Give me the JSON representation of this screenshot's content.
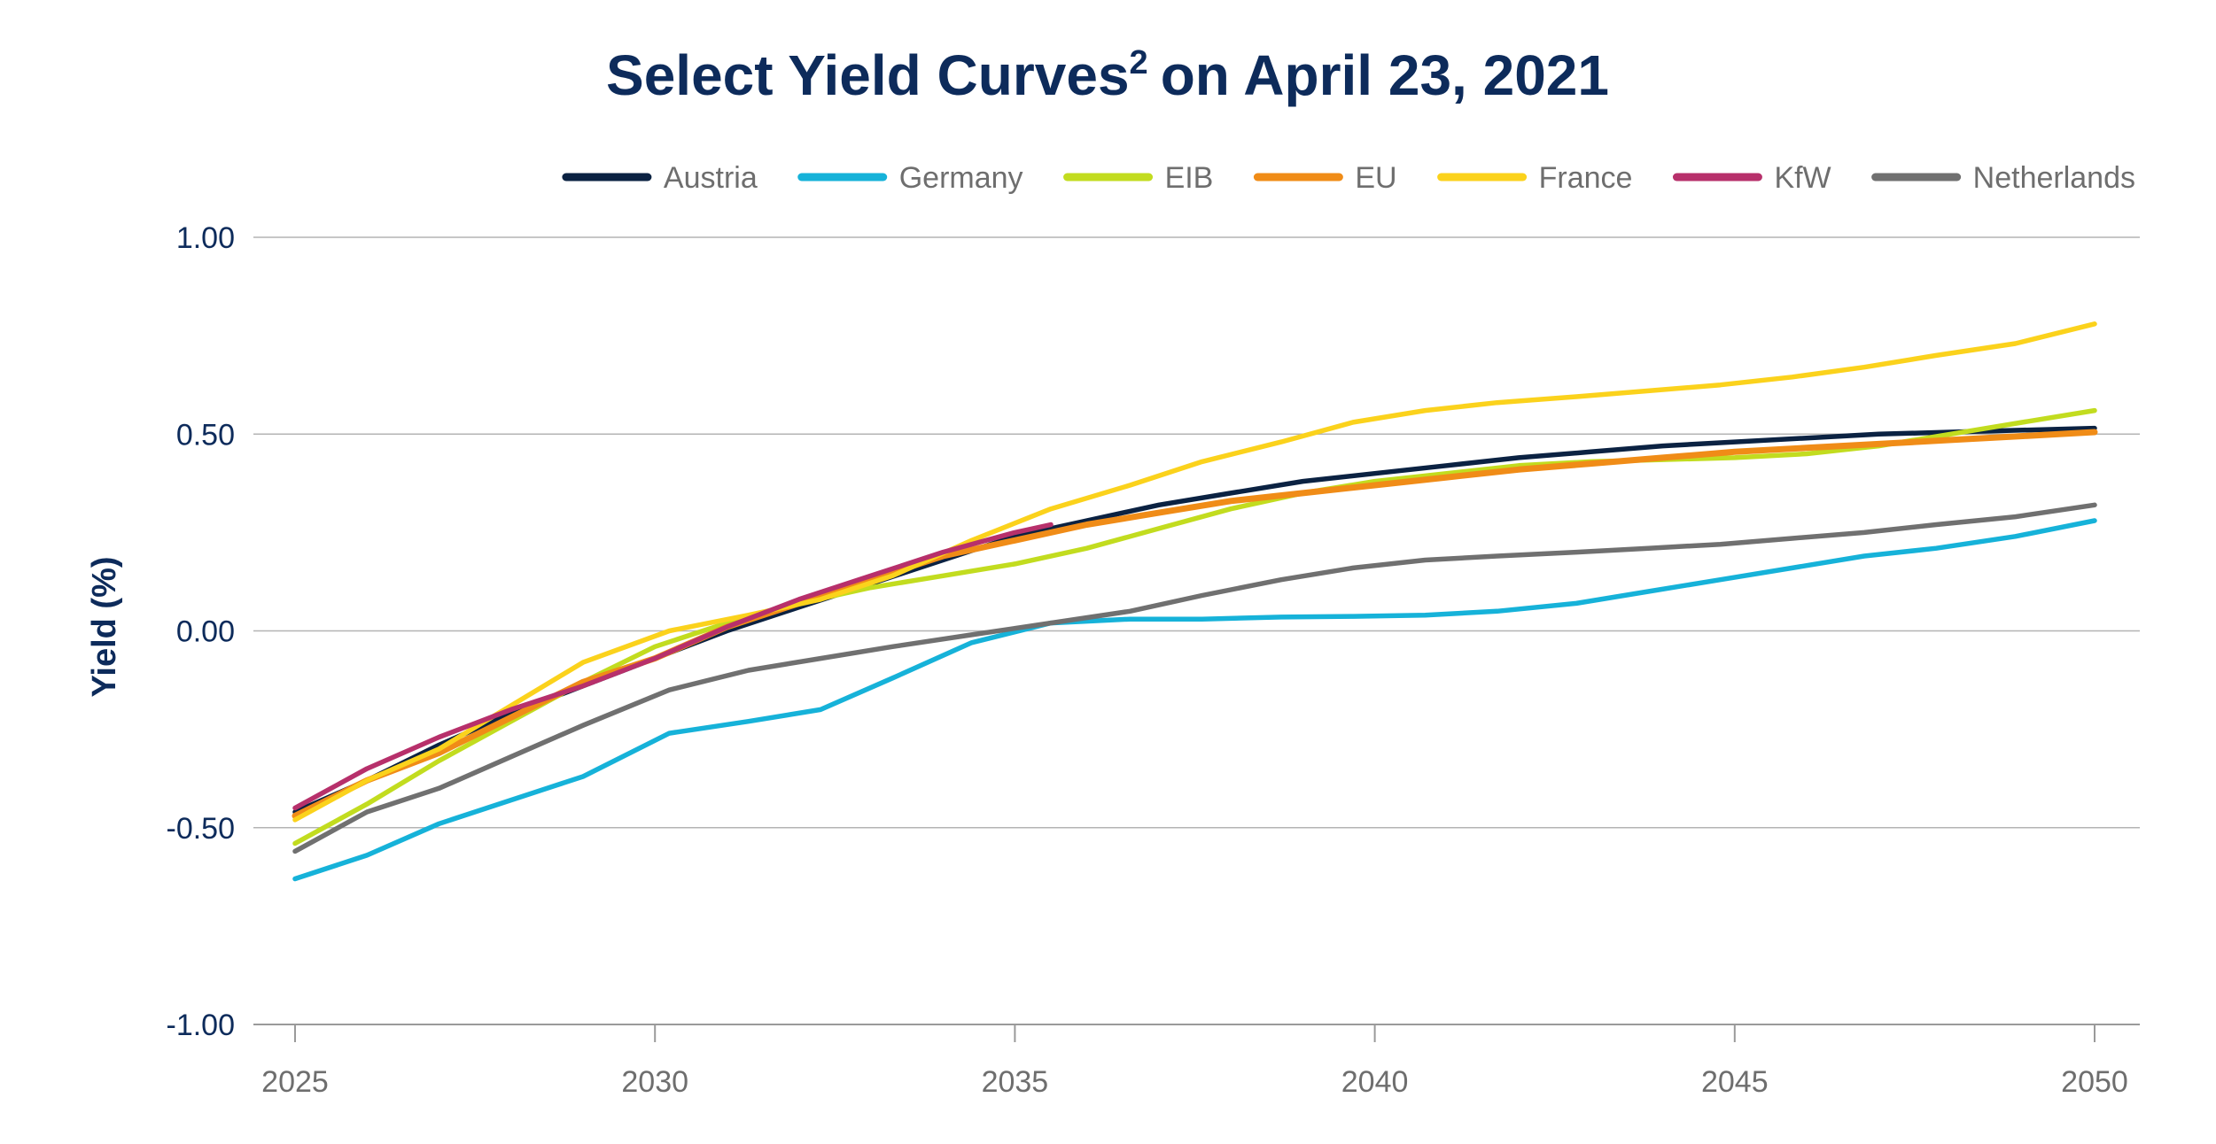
{
  "chart_data": {
    "type": "line",
    "title": "Select Yield Curves",
    "title_superscript": "2",
    "title_suffix": "on April 23, 2021",
    "xlabel": "",
    "ylabel": "Yield (%)",
    "xlim": [
      2025,
      2050
    ],
    "ylim": [
      -1.0,
      1.0
    ],
    "x_ticks": [
      "2025",
      "2030",
      "2035",
      "2040",
      "2045",
      "2050"
    ],
    "y_ticks": [
      "1.00",
      "0.50",
      "0.00",
      "-0.50",
      "-1.00"
    ],
    "grid": "horizontal",
    "legend_position": "top-right",
    "series": [
      {
        "name": "Austria",
        "color": "#0b2242",
        "x": [
          2025,
          2026,
          2027,
          2028,
          2029,
          2030,
          2031,
          2032,
          2033,
          2034,
          2035,
          2036,
          2037,
          2038,
          2039,
          2040,
          2041,
          2042,
          2043,
          2044,
          2045,
          2046,
          2047,
          2048,
          2049,
          2050
        ],
        "y": [
          -0.46,
          -0.38,
          -0.29,
          -0.21,
          -0.14,
          -0.07,
          0.0,
          0.06,
          0.12,
          0.18,
          0.24,
          0.28,
          0.32,
          0.35,
          0.38,
          0.4,
          0.42,
          0.44,
          0.455,
          0.47,
          0.48,
          0.49,
          0.5,
          0.505,
          0.51,
          0.515
        ]
      },
      {
        "name": "Germany",
        "color": "#16b2d9",
        "x": [
          2025,
          2026,
          2027,
          2028,
          2029,
          2030.2,
          2031.3,
          2032.3,
          2033.3,
          2034.4,
          2035.5,
          2036.6,
          2037.6,
          2038.7,
          2039.7,
          2040.7,
          2041.7,
          2042.8,
          2043.8,
          2044.8,
          2045.8,
          2046.8,
          2047.8,
          2048.9,
          2050
        ],
        "y": [
          -0.63,
          -0.57,
          -0.49,
          -0.43,
          -0.37,
          -0.26,
          -0.23,
          -0.2,
          -0.12,
          -0.03,
          0.02,
          0.03,
          0.03,
          0.035,
          0.037,
          0.04,
          0.05,
          0.07,
          0.1,
          0.13,
          0.16,
          0.19,
          0.21,
          0.24,
          0.28
        ]
      },
      {
        "name": "EIB",
        "color": "#c2dc1f",
        "x": [
          2025,
          2026,
          2027,
          2028,
          2029,
          2030,
          2031,
          2032,
          2033,
          2034,
          2035,
          2036,
          2037,
          2038,
          2039,
          2040,
          2041,
          2042,
          2043,
          2044,
          2045,
          2046,
          2047,
          2048,
          2049,
          2050
        ],
        "y": [
          -0.54,
          -0.44,
          -0.33,
          -0.23,
          -0.13,
          -0.04,
          0.02,
          0.07,
          0.11,
          0.14,
          0.17,
          0.21,
          0.26,
          0.31,
          0.35,
          0.38,
          0.4,
          0.42,
          0.43,
          0.435,
          0.44,
          0.45,
          0.47,
          0.5,
          0.53,
          0.56
        ]
      },
      {
        "name": "EU",
        "color": "#f08c17",
        "x": [
          2025,
          2026,
          2027,
          2028,
          2029,
          2030,
          2031,
          2032,
          2033,
          2034,
          2035,
          2036,
          2037,
          2038,
          2039,
          2040,
          2041,
          2042,
          2043,
          2044,
          2045,
          2046,
          2047,
          2048,
          2049,
          2050
        ],
        "y": [
          -0.47,
          -0.38,
          -0.31,
          -0.22,
          -0.13,
          -0.07,
          0.01,
          0.07,
          0.13,
          0.19,
          0.23,
          0.27,
          0.3,
          0.33,
          0.35,
          0.37,
          0.39,
          0.41,
          0.425,
          0.44,
          0.455,
          0.465,
          0.475,
          0.485,
          0.495,
          0.505
        ]
      },
      {
        "name": "France",
        "color": "#fbd21c",
        "x": [
          2025,
          2026,
          2027,
          2028,
          2029,
          2030.2,
          2031.3,
          2032.3,
          2033.3,
          2034.4,
          2035.5,
          2036.6,
          2037.6,
          2038.7,
          2039.7,
          2040.7,
          2041.7,
          2042.8,
          2043.8,
          2044.8,
          2045.8,
          2046.8,
          2047.8,
          2048.9,
          2050
        ],
        "y": [
          -0.48,
          -0.38,
          -0.3,
          -0.19,
          -0.08,
          0.0,
          0.04,
          0.08,
          0.14,
          0.23,
          0.31,
          0.37,
          0.43,
          0.48,
          0.53,
          0.56,
          0.58,
          0.595,
          0.61,
          0.625,
          0.645,
          0.67,
          0.7,
          0.73,
          0.78
        ]
      },
      {
        "name": "KfW",
        "color": "#b7306b",
        "x": [
          2025,
          2026,
          2027,
          2028,
          2029,
          2030,
          2031,
          2032,
          2033,
          2034,
          2035,
          2035.5
        ],
        "y": [
          -0.45,
          -0.35,
          -0.27,
          -0.2,
          -0.14,
          -0.07,
          0.01,
          0.08,
          0.14,
          0.2,
          0.25,
          0.27
        ]
      },
      {
        "name": "Netherlands",
        "color": "#707070",
        "x": [
          2025,
          2026,
          2027,
          2028,
          2029,
          2030.2,
          2031.3,
          2032.3,
          2033.3,
          2034.4,
          2035.5,
          2036.6,
          2037.6,
          2038.7,
          2039.7,
          2040.7,
          2041.7,
          2042.8,
          2043.8,
          2044.8,
          2045.8,
          2046.8,
          2047.8,
          2048.9,
          2050
        ],
        "y": [
          -0.56,
          -0.46,
          -0.4,
          -0.32,
          -0.24,
          -0.15,
          -0.1,
          -0.07,
          -0.04,
          -0.01,
          0.02,
          0.05,
          0.09,
          0.13,
          0.16,
          0.18,
          0.19,
          0.2,
          0.21,
          0.22,
          0.235,
          0.25,
          0.27,
          0.29,
          0.32
        ]
      }
    ]
  }
}
